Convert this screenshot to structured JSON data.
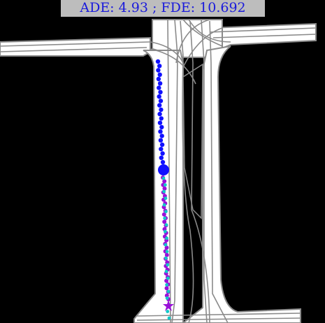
{
  "metrics": {
    "label": "ADE: 4.93 ; FDE: 10.692",
    "ade": 4.93,
    "fde": 10.692
  },
  "colors": {
    "background": "#000000",
    "road_surface": "#ffffff",
    "lane_line": "#8a8a8a",
    "history": "#1010ff",
    "current_position": "#1010ff",
    "prediction": "#9a10d8",
    "ground_truth": "#10c8c8",
    "label_box": "#bdbdbd",
    "label_text": "#1a1adc"
  },
  "map_elements": {
    "road_surface": "road-surface",
    "lane_line": "lane-line",
    "history_marker": "dot",
    "current_position_marker": "large-dot",
    "prediction_marker": "dot",
    "endpoint_marker": "star"
  }
}
